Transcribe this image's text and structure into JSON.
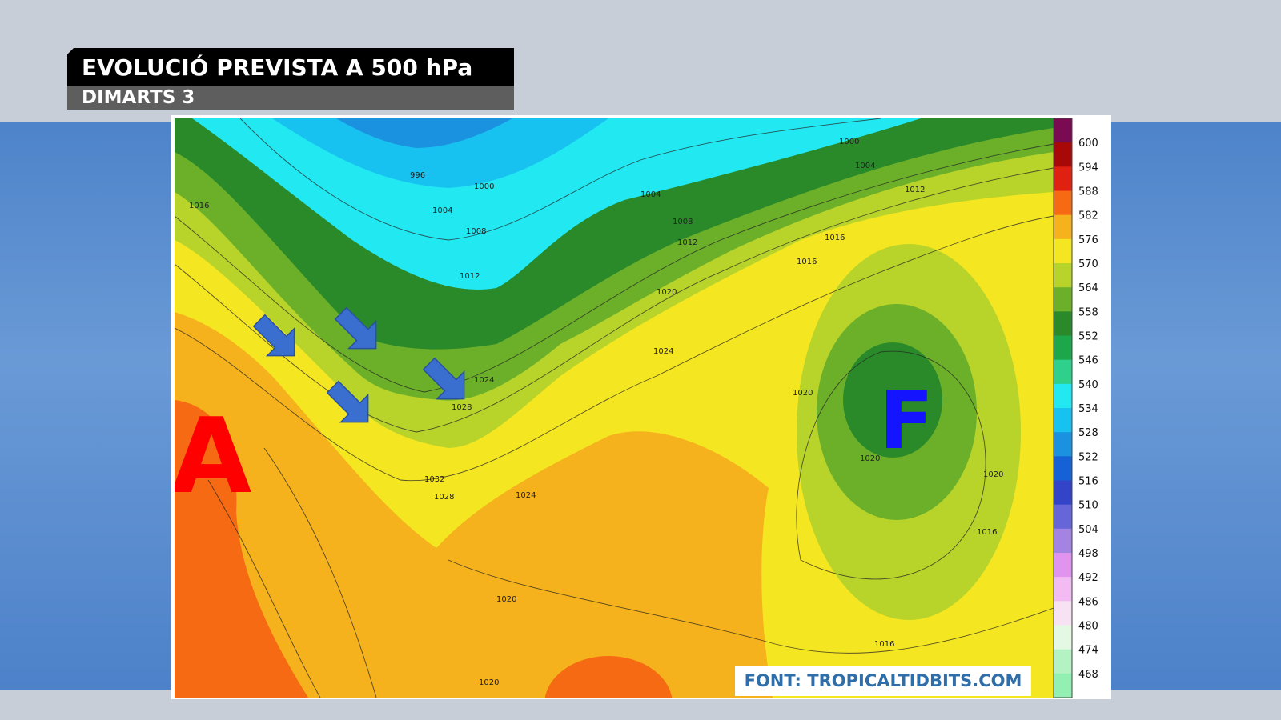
{
  "header": {
    "title": "EVOLUCIÓ PREVISTA A 500 hPa",
    "subtitle": "DIMARTS 3"
  },
  "map": {
    "high_label": "A",
    "low_label": "F",
    "isobar_labels": [
      "996",
      "1000",
      "1004",
      "1008",
      "1012",
      "1016",
      "1000",
      "1004",
      "1008",
      "1012",
      "1004",
      "1012",
      "1016",
      "1020",
      "1024",
      "1024",
      "1028",
      "1032",
      "1028",
      "1024",
      "1020",
      "1020",
      "1020",
      "1016",
      "1016",
      "1020",
      "1020",
      "1016"
    ],
    "source": "FONT: TROPICALTIDBITS.COM"
  },
  "colorbar": {
    "labels": [
      600,
      594,
      588,
      582,
      576,
      570,
      564,
      558,
      552,
      546,
      540,
      534,
      528,
      522,
      516,
      510,
      504,
      498,
      492,
      486,
      480,
      474,
      468
    ],
    "colors": [
      "#7a0a52",
      "#a80808",
      "#e02010",
      "#f56a12",
      "#f5b21c",
      "#f5e622",
      "#b8d42a",
      "#6cb02a",
      "#2a8a2a",
      "#1ca84a",
      "#2ed08c",
      "#22e8f2",
      "#18c2f0",
      "#1a92e0",
      "#1462d6",
      "#3444c8",
      "#6666d8",
      "#a484e2",
      "#e094f0",
      "#f2bcf2",
      "#f6e2f2",
      "#e4f8e4",
      "#b4f2c4",
      "#92f0b2"
    ]
  }
}
